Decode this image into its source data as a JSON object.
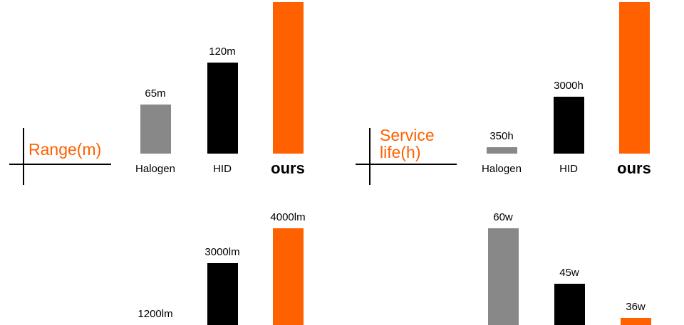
{
  "chart_data": [
    {
      "type": "bar",
      "title": "Range(m)",
      "categories": [
        "Halogen",
        "HID",
        "ours"
      ],
      "values": [
        65,
        120,
        200
      ],
      "value_labels": [
        "65m",
        "120m",
        null
      ],
      "colors": [
        "#888888",
        "#000000",
        "#ff6000"
      ],
      "ylim": [
        0,
        200
      ]
    },
    {
      "type": "bar",
      "title": "Service life(h)",
      "categories": [
        "Halogen",
        "HID",
        "ours"
      ],
      "values": [
        350,
        3000,
        8000
      ],
      "value_labels": [
        "350h",
        "3000h",
        null
      ],
      "colors": [
        "#888888",
        "#000000",
        "#ff6000"
      ],
      "ylim": [
        0,
        8000
      ]
    },
    {
      "type": "bar",
      "values": [
        1200,
        3000,
        4000
      ],
      "value_labels": [
        "1200lm",
        "3000lm",
        "4000lm"
      ],
      "colors": [
        "#888888",
        "#000000",
        "#ff6000"
      ],
      "ylim": [
        1200,
        4000
      ]
    },
    {
      "type": "bar",
      "values": [
        60,
        45,
        36
      ],
      "value_labels": [
        "60w",
        "45w",
        "36w"
      ],
      "colors": [
        "#888888",
        "#000000",
        "#ff6000"
      ],
      "ylim": [
        34,
        60
      ]
    }
  ]
}
